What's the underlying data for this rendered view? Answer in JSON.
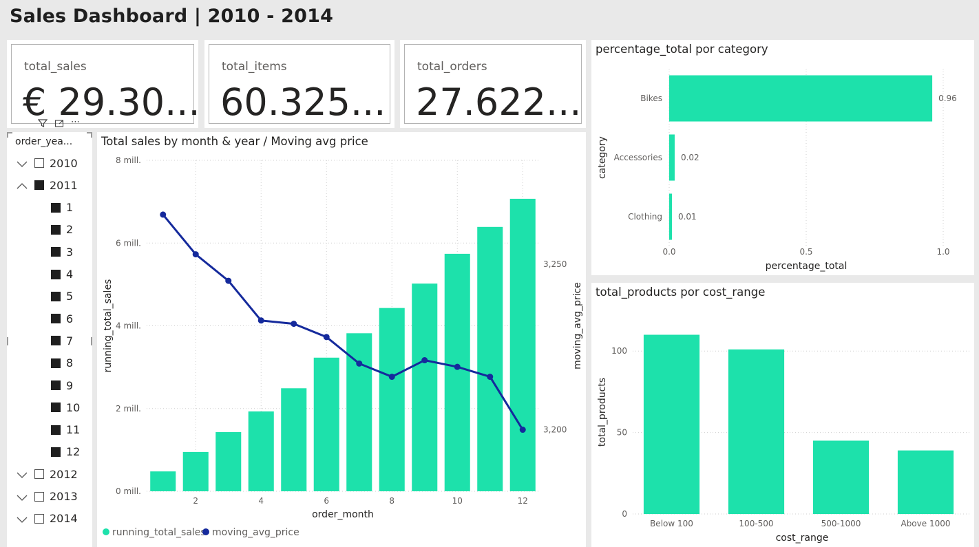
{
  "page": {
    "title": "Sales Dashboard  | 2010 - 2014"
  },
  "cards": [
    {
      "label": "total_sales",
      "value": "€ 29.30..."
    },
    {
      "label": "total_items",
      "value": "60.325..."
    },
    {
      "label": "total_orders",
      "value": "27.622..."
    }
  ],
  "slicer": {
    "header": "order_yea...",
    "years": [
      {
        "label": "2010",
        "expanded": false,
        "checked": false
      },
      {
        "label": "2011",
        "expanded": true,
        "checked": true,
        "months": [
          "1",
          "2",
          "3",
          "4",
          "5",
          "6",
          "7",
          "8",
          "9",
          "10",
          "11",
          "12"
        ]
      },
      {
        "label": "2012",
        "expanded": false,
        "checked": false
      },
      {
        "label": "2013",
        "expanded": false,
        "checked": false
      },
      {
        "label": "2014",
        "expanded": false,
        "checked": false
      }
    ]
  },
  "toolbar": {
    "filter_icon": "filter-icon",
    "focus_icon": "focus-mode-icon",
    "more_label": "⋯"
  },
  "colors": {
    "accent": "#1de1ab",
    "line": "#152a9c",
    "grid": "#cfcfcf"
  },
  "chart_data": [
    {
      "type": "bar+line",
      "title": "Total sales by month & year / Moving avg price",
      "xlabel": "order_month",
      "ylabel": "running_total_sales",
      "y2label": "moving_avg_price",
      "x": [
        1,
        2,
        3,
        4,
        5,
        6,
        7,
        8,
        9,
        10,
        11,
        12
      ],
      "x_ticks": [
        "2",
        "4",
        "6",
        "8",
        "10",
        "12"
      ],
      "y_ticks": [
        "0 mill.",
        "2 mill.",
        "4 mill.",
        "6 mill.",
        "8 mill."
      ],
      "y2_ticks": [
        "3,200",
        "3,250"
      ],
      "ylim": [
        0,
        8000000
      ],
      "y2lim": [
        3181.4,
        3281.4
      ],
      "series": [
        {
          "name": "running_total_sales",
          "type": "bar",
          "values": [
            480000,
            950000,
            1430000,
            1930000,
            2490000,
            3230000,
            3820000,
            4430000,
            5020000,
            5740000,
            6390000,
            7070000
          ]
        },
        {
          "name": "moving_avg_price",
          "type": "line",
          "values": [
            3265,
            3253,
            3245,
            3233,
            3232,
            3228,
            3220,
            3216,
            3221,
            3219,
            3216,
            3200
          ]
        }
      ],
      "legend": "bottom-left"
    },
    {
      "type": "bar",
      "orientation": "horizontal",
      "title": "percentage_total por category",
      "categories": [
        "Bikes",
        "Accessories",
        "Clothing"
      ],
      "values": [
        0.96,
        0.02,
        0.01
      ],
      "data_labels": [
        "0.96",
        "0.02",
        "0.01"
      ],
      "x_ticks": [
        "0.0",
        "0.5",
        "1.0"
      ],
      "xlim": [
        0,
        1
      ],
      "xlabel": "percentage_total",
      "ylabel": "category"
    },
    {
      "type": "bar",
      "title": "total_products por cost_range",
      "categories": [
        "Below 100",
        "100-500",
        "500-1000",
        "Above 1000"
      ],
      "values": [
        110,
        101,
        45,
        39
      ],
      "y_ticks": [
        "0",
        "50",
        "100"
      ],
      "ylim": [
        0,
        125
      ],
      "xlabel": "cost_range",
      "ylabel": "total_products"
    }
  ]
}
